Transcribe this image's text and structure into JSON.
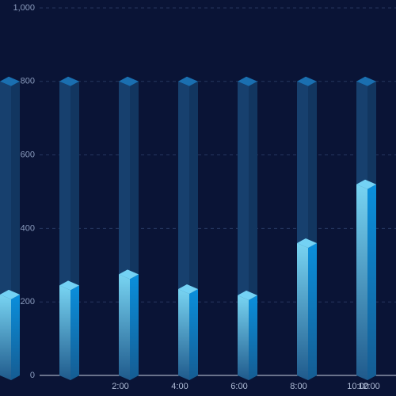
{
  "chart_data": {
    "type": "bar3d",
    "categories": [
      null,
      null,
      "2:00",
      "4:00",
      "6:00",
      "8:00",
      "10:00",
      "12:00"
    ],
    "series": [
      {
        "color": "#1a6fb0",
        "values": [
          800,
          800,
          800,
          800,
          800,
          800,
          800,
          null
        ]
      },
      {
        "color": "#0a8fd8",
        "values": [
          220,
          245,
          275,
          235,
          218,
          360,
          520,
          null
        ]
      }
    ],
    "ylim": [
      0,
      1000
    ],
    "yticks": [
      0,
      200,
      400,
      600,
      800,
      {
        "value": 1000,
        "label": "1,000"
      }
    ],
    "grid": true
  }
}
